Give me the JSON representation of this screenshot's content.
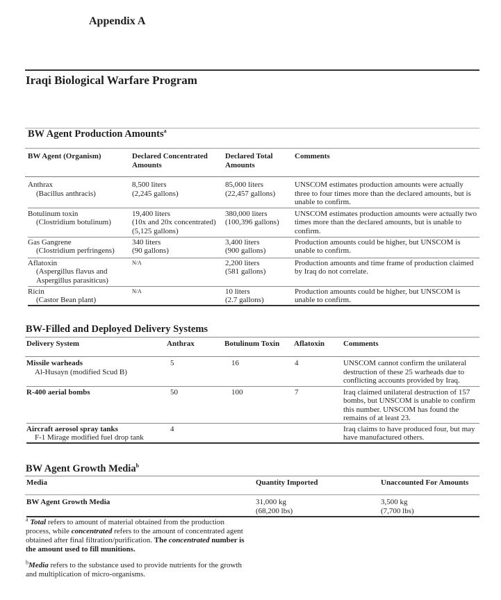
{
  "appendix_title": "Appendix A",
  "page_title": "Iraqi Biological Warfare Program",
  "production": {
    "title": "BW Agent Production Amounts",
    "title_note": "a",
    "headers": [
      "BW Agent (Organism)",
      "Declared Concentrated Amounts",
      "Declared Total Amounts",
      "Comments"
    ],
    "rows": [
      {
        "agent": "Anthrax",
        "organism": "(Bacillus anthracis)",
        "concentrated": [
          "8,500 liters",
          "(2,245 gallons)"
        ],
        "total": [
          "85,000 liters",
          "(22,457 gallons)"
        ],
        "comments": "UNSCOM estimates production amounts were actually three to four times more than the declared amounts, but is unable to confirm."
      },
      {
        "agent": "Botulinum toxin",
        "organism": "(Clostridium botulinum)",
        "concentrated": [
          "19,400 liters",
          "(10x and 20x concentrated)",
          "(5,125 gallons)"
        ],
        "total": [
          "380,000 liters",
          "(100,396 gallons)"
        ],
        "comments": "UNSCOM estimates production amounts were actually two times more than the declared amounts, but is unable to confirm."
      },
      {
        "agent": "Gas Gangrene",
        "organism": "(Clostridium perfringens)",
        "concentrated": [
          "340 liters",
          "(90 gallons)"
        ],
        "total": [
          "3,400 liters",
          "(900 gallons)"
        ],
        "comments": "Production amounts could be higher, but UNSCOM is unable to confirm."
      },
      {
        "agent": "Aflatoxin",
        "organism": "(Aspergillus flavus and Aspergillus parasiticus)",
        "concentrated": [
          "N/A"
        ],
        "total": [
          "2,200 liters",
          "(581 gallons)"
        ],
        "comments": "Production amounts and time frame of production claimed by Iraq do not correlate."
      },
      {
        "agent": "Ricin",
        "organism": "(Castor Bean plant)",
        "concentrated": [
          "N/A"
        ],
        "total": [
          "10 liters",
          "(2.7 gallons)"
        ],
        "comments": "Production amounts could be higher, but UNSCOM is unable to confirm."
      }
    ]
  },
  "delivery": {
    "title": "BW-Filled and Deployed Delivery Systems",
    "headers": [
      "Delivery System",
      "Anthrax",
      "Botulinum Toxin",
      "Aflatoxin",
      "Comments"
    ],
    "rows": [
      {
        "system": "Missile warheads",
        "detail": "Al-Husayn (modified Scud B)",
        "anthrax": "5",
        "botulinum": "16",
        "aflatoxin": "4",
        "comments": "UNSCOM cannot confirm the unilateral destruction of these 25 warheads due to conflicting accounts provided by Iraq."
      },
      {
        "system": "R-400 aerial bombs",
        "detail": "",
        "anthrax": "50",
        "botulinum": "100",
        "aflatoxin": "7",
        "comments": "Iraq claimed unilateral destruction of 157 bombs, but UNSCOM is unable to confirm this number. UNSCOM has found the remains of at least 23."
      },
      {
        "system": "Aircraft aerosol spray tanks",
        "detail": "F-1 Mirage modified fuel drop tank",
        "anthrax": "4",
        "botulinum": "",
        "aflatoxin": "",
        "comments": "Iraq claims to have produced four, but may have manufactured others."
      }
    ]
  },
  "media": {
    "title": "BW Agent Growth Media",
    "title_note": "b",
    "headers": [
      "Media",
      "Quantity Imported",
      "Unaccounted For Amounts"
    ],
    "rows": [
      {
        "media": "BW Agent Growth Media",
        "imported": [
          "31,000 kg",
          "(68,200 lbs)"
        ],
        "unaccounted": [
          "3,500 kg",
          "(7,700 lbs)"
        ]
      }
    ]
  },
  "footnotes": {
    "a": {
      "mark": "a",
      "term1": "Total",
      "text1": " refers to amount of material obtained from the production process, while ",
      "term2": "concentrated",
      "text2": " refers to the amount of concentrated agent obtained after final filtration/purification. ",
      "bold1": "The ",
      "term3": "concentrated",
      "bold2": " number is the amount used to fill munitions."
    },
    "b": {
      "mark": "b",
      "term": "Media",
      "text": " refers to the substance used to provide nutrients for the growth and multiplication of micro-organisms."
    }
  }
}
